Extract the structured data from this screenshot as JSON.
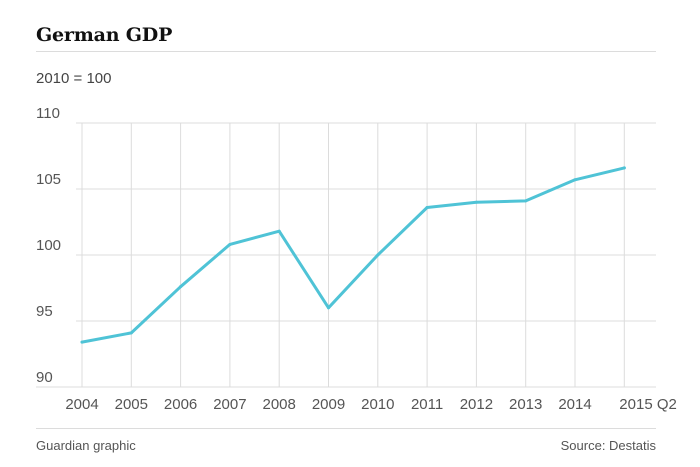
{
  "title": "German GDP",
  "subtitle": "2010 = 100",
  "footer": {
    "credit": "Guardian graphic",
    "source": "Source: Destatis"
  },
  "colors": {
    "line": "#4fc3d6",
    "grid": "#dcdcdc",
    "text": "#555555"
  },
  "chart_data": {
    "type": "line",
    "title": "German GDP",
    "subtitle": "2010 = 100",
    "xlabel": "",
    "ylabel": "",
    "categories": [
      "2004",
      "2005",
      "2006",
      "2007",
      "2008",
      "2009",
      "2010",
      "2011",
      "2012",
      "2013",
      "2014",
      "2015 Q2"
    ],
    "series": [
      {
        "values": [
          93.4,
          94.1,
          97.6,
          100.8,
          101.8,
          96.0,
          100.0,
          103.6,
          104.0,
          104.1,
          105.7,
          106.6
        ]
      }
    ],
    "ylim": [
      90,
      110
    ],
    "yticks": [
      90,
      95,
      100,
      105,
      110
    ],
    "grid": true,
    "legend": "none"
  }
}
